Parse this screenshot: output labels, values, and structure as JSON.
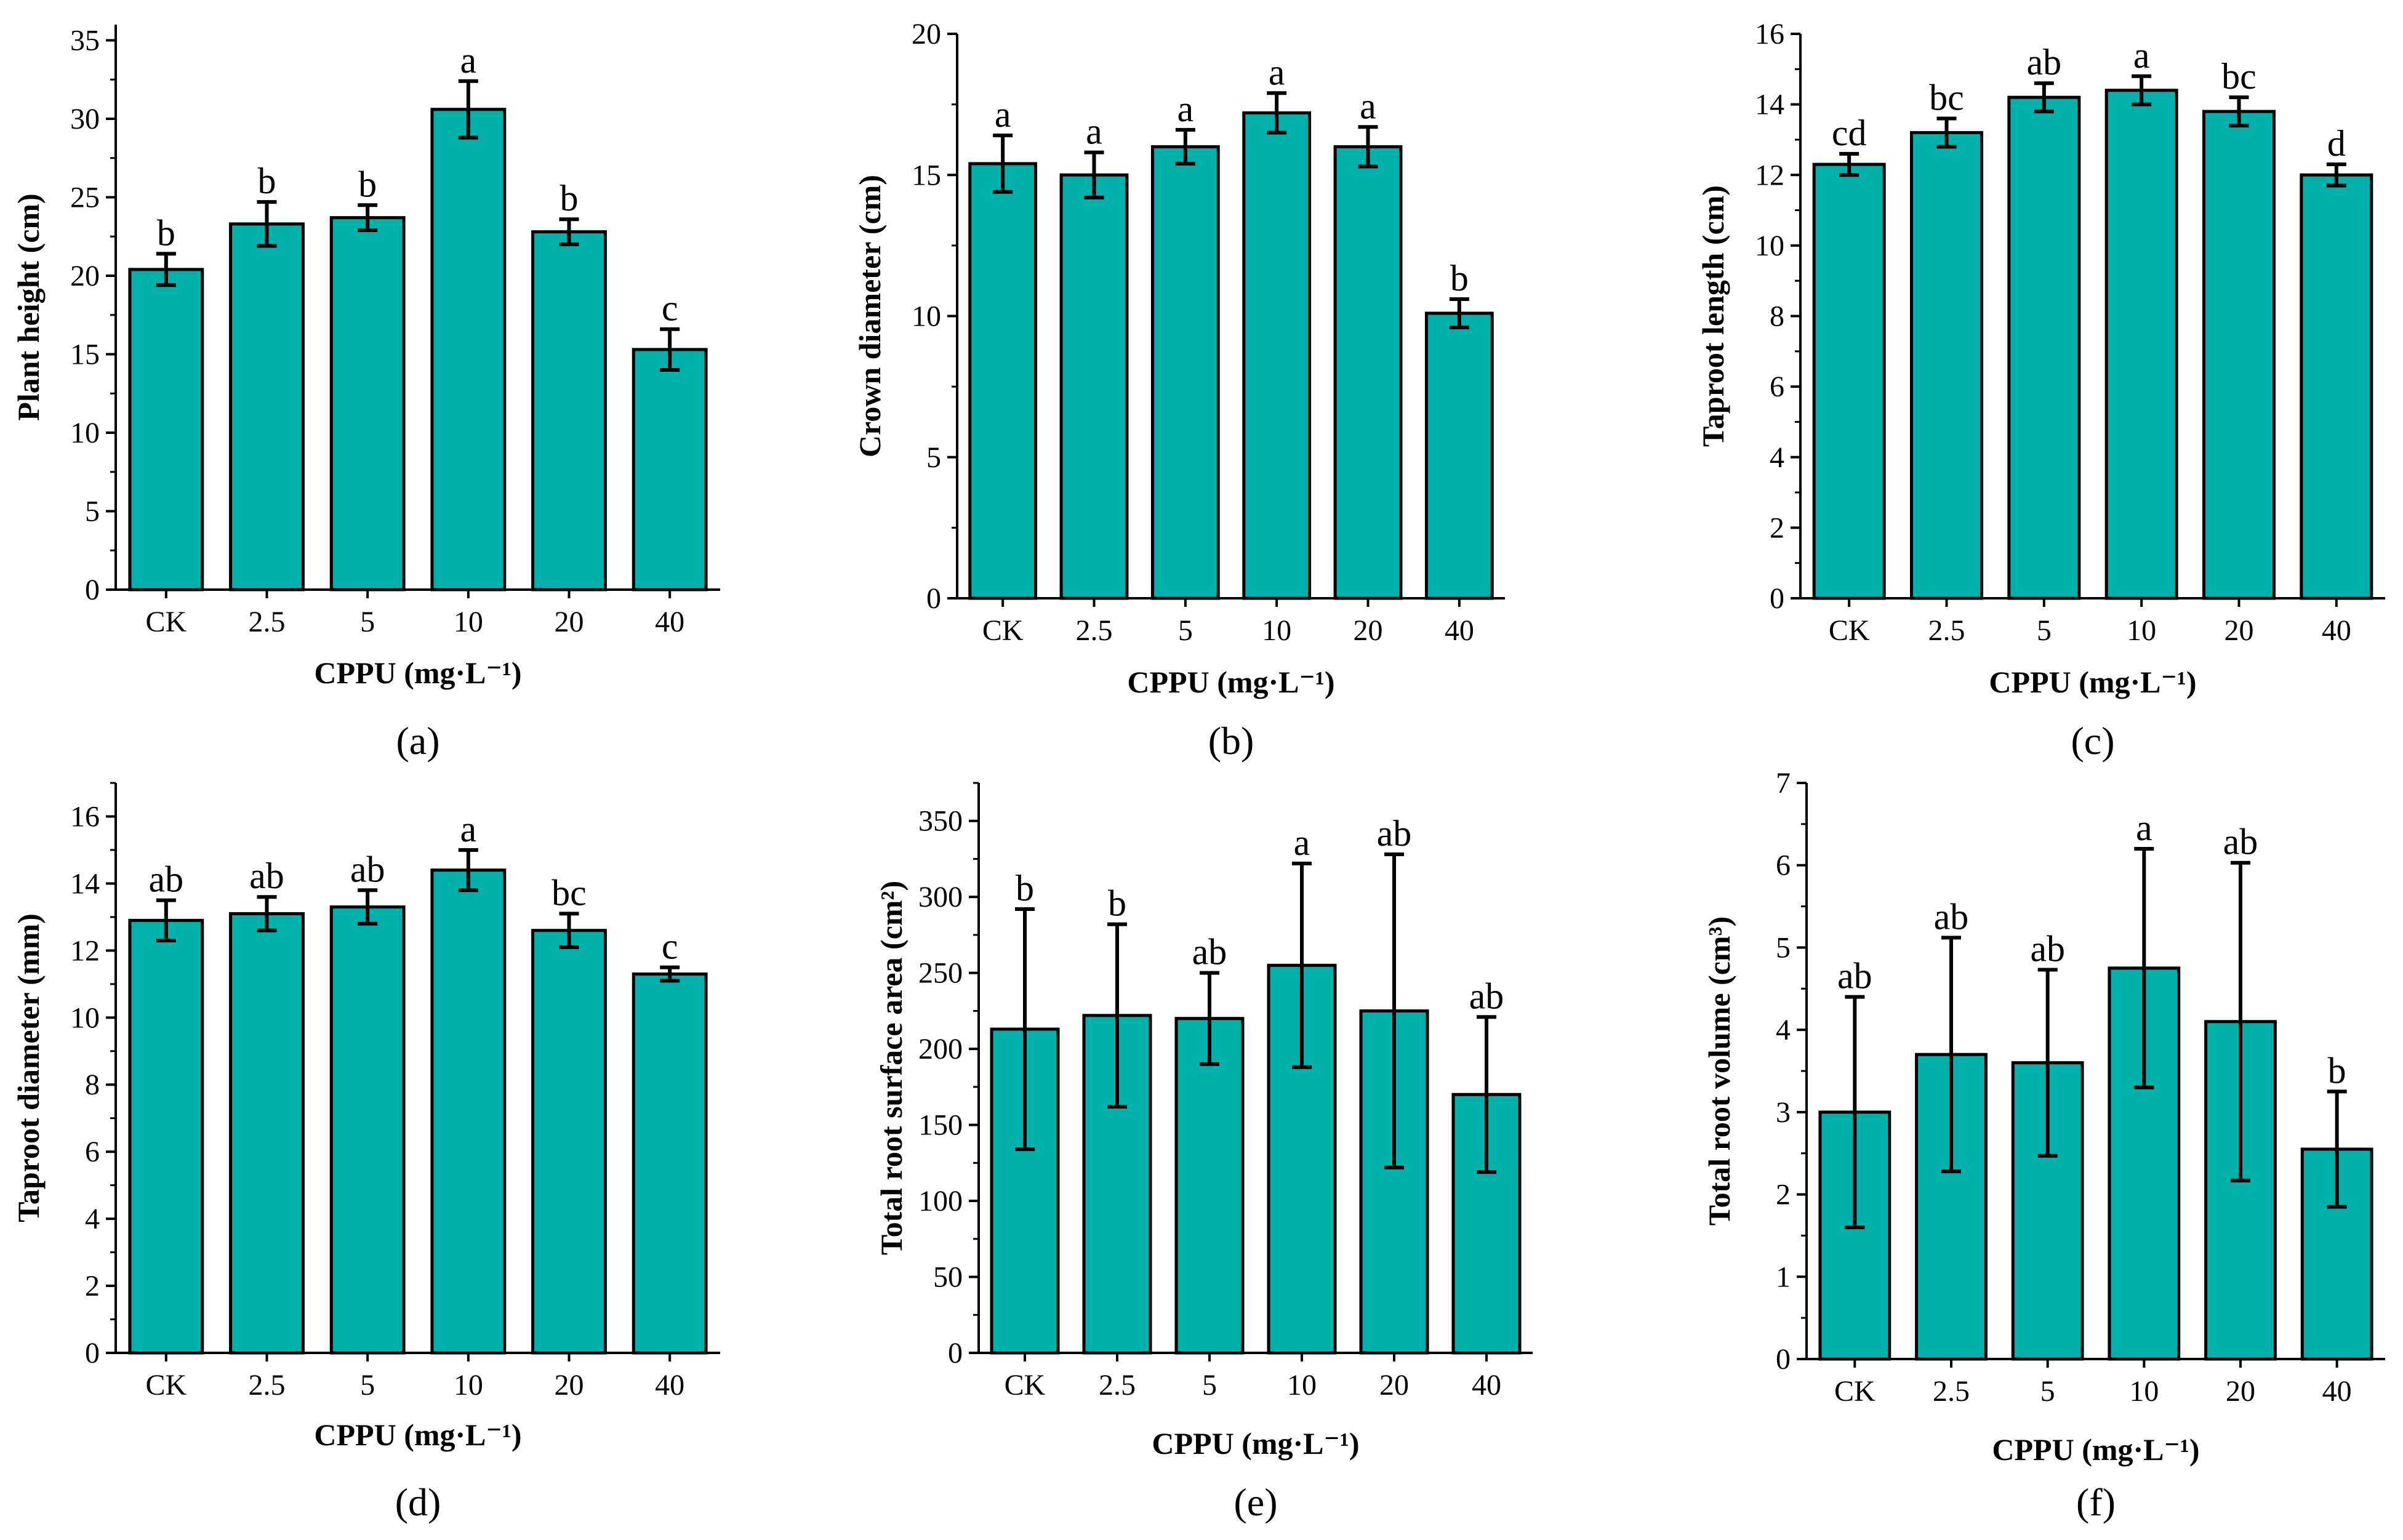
{
  "style": {
    "bar_color": "#00B0AA",
    "bar_stroke": "#000000"
  },
  "chart_data": [
    {
      "panel": "(a)",
      "type": "bar",
      "categories": [
        "CK",
        "2.5",
        "5",
        "10",
        "20",
        "40"
      ],
      "values": [
        20.4,
        23.3,
        23.7,
        30.6,
        22.8,
        15.3
      ],
      "errors": [
        1.0,
        1.4,
        0.8,
        1.8,
        0.8,
        1.3
      ],
      "letters": [
        "b",
        "b",
        "b",
        "a",
        "b",
        "c"
      ],
      "xlabel": "CPPU (mg·L⁻¹)",
      "ylabel": "Plant height (cm)",
      "ylim": [
        0,
        36
      ],
      "yticks": [
        0,
        5,
        10,
        15,
        20,
        25,
        30,
        35
      ],
      "grid": false
    },
    {
      "panel": "(b)",
      "type": "bar",
      "categories": [
        "CK",
        "2.5",
        "5",
        "10",
        "20",
        "40"
      ],
      "values": [
        15.4,
        15.0,
        16.0,
        17.2,
        16.0,
        10.1
      ],
      "errors": [
        1.0,
        0.8,
        0.6,
        0.7,
        0.7,
        0.5
      ],
      "letters": [
        "a",
        "a",
        "a",
        "a",
        "a",
        "b"
      ],
      "xlabel": "CPPU (mg·L⁻¹)",
      "ylabel": "Crown diameter (cm)",
      "ylim": [
        0,
        20
      ],
      "yticks": [
        0,
        5,
        10,
        15,
        20
      ],
      "grid": false
    },
    {
      "panel": "(c)",
      "type": "bar",
      "categories": [
        "CK",
        "2.5",
        "5",
        "10",
        "20",
        "40"
      ],
      "values": [
        12.3,
        13.2,
        14.2,
        14.4,
        13.8,
        12.0
      ],
      "errors": [
        0.3,
        0.4,
        0.4,
        0.4,
        0.4,
        0.3
      ],
      "letters": [
        "cd",
        "bc",
        "ab",
        "a",
        "bc",
        "d"
      ],
      "xlabel": "CPPU (mg·L⁻¹)",
      "ylabel": "Taproot length (cm)",
      "ylim": [
        0,
        16
      ],
      "yticks": [
        0,
        2,
        4,
        6,
        8,
        10,
        12,
        14,
        16
      ],
      "grid": false
    },
    {
      "panel": "(d)",
      "type": "bar",
      "categories": [
        "CK",
        "2.5",
        "5",
        "10",
        "20",
        "40"
      ],
      "values": [
        12.9,
        13.1,
        13.3,
        14.4,
        12.6,
        11.3
      ],
      "errors": [
        0.6,
        0.5,
        0.5,
        0.6,
        0.5,
        0.2
      ],
      "letters": [
        "ab",
        "ab",
        "ab",
        "a",
        "bc",
        "c"
      ],
      "xlabel": "CPPU (mg·L⁻¹)",
      "ylabel": "Taproot diameter (mm)",
      "ylim": [
        0,
        17
      ],
      "yticks": [
        0,
        2,
        4,
        6,
        8,
        10,
        12,
        14,
        16
      ],
      "grid": false
    },
    {
      "panel": "(e)",
      "type": "bar",
      "categories": [
        "CK",
        "2.5",
        "5",
        "10",
        "20",
        "40"
      ],
      "values": [
        213,
        222,
        220,
        255,
        225,
        170
      ],
      "errors": [
        79,
        60,
        30,
        67,
        103,
        51
      ],
      "letters": [
        "b",
        "b",
        "ab",
        "a",
        "ab",
        "ab"
      ],
      "xlabel": "CPPU (mg·L⁻¹)",
      "ylabel": "Total root surface area (cm²)",
      "ylim": [
        0,
        375
      ],
      "yticks": [
        0,
        50,
        100,
        150,
        200,
        250,
        300,
        350
      ],
      "grid": false
    },
    {
      "panel": "(f)",
      "type": "bar",
      "categories": [
        "CK",
        "2.5",
        "5",
        "10",
        "20",
        "40"
      ],
      "values": [
        3.0,
        3.7,
        3.6,
        4.75,
        4.1,
        2.55
      ],
      "errors": [
        1.4,
        1.42,
        1.13,
        1.45,
        1.93,
        0.7
      ],
      "letters": [
        "ab",
        "ab",
        "ab",
        "a",
        "ab",
        "b"
      ],
      "xlabel": "CPPU (mg·L⁻¹)",
      "ylabel": "Total root volume (cm³)",
      "ylim": [
        0,
        7
      ],
      "yticks": [
        0,
        1,
        2,
        3,
        4,
        5,
        6,
        7
      ],
      "grid": false
    }
  ]
}
